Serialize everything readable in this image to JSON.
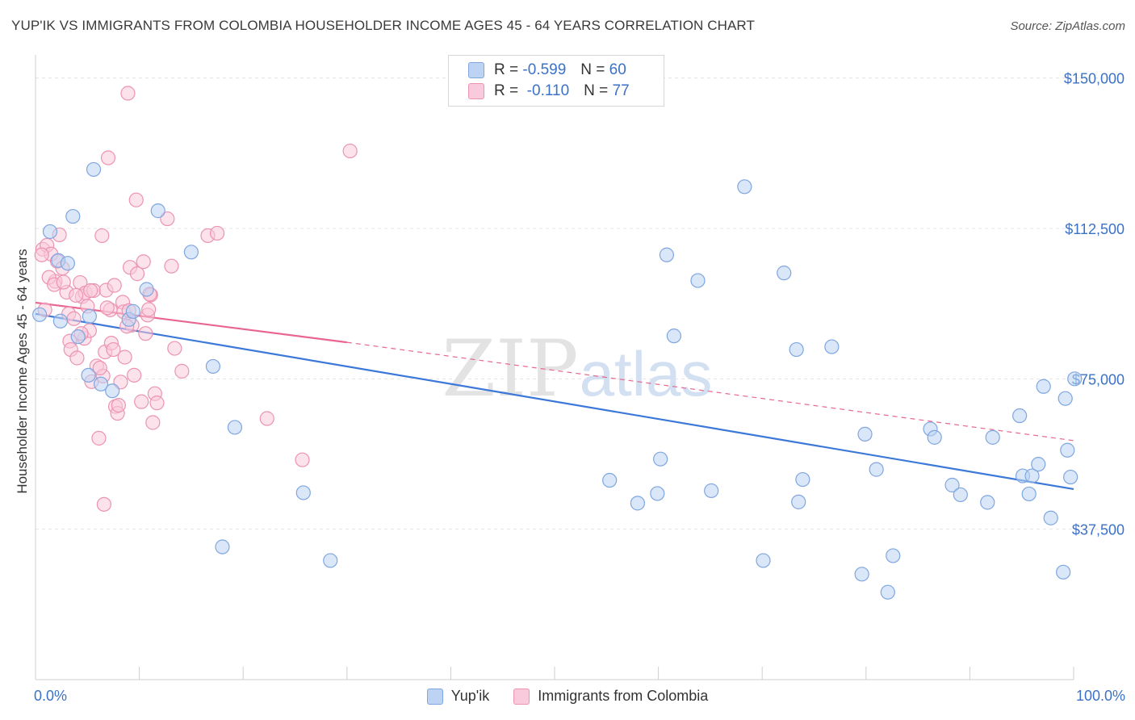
{
  "title": "YUP'IK VS IMMIGRANTS FROM COLOMBIA HOUSEHOLDER INCOME AGES 45 - 64 YEARS CORRELATION CHART",
  "source": "Source: ZipAtlas.com",
  "watermark": {
    "zip": "ZIP",
    "atlas": "atlas"
  },
  "legend_top": {
    "r_label": "R =",
    "n_label": "N =",
    "rows": [
      {
        "r": "-0.599",
        "n": "60"
      },
      {
        "r": "-0.110",
        "n": "77"
      }
    ]
  },
  "legend_bottom": [
    "Yup'ik",
    "Immigrants from Colombia"
  ],
  "colors": {
    "blue_fill": "#bcd3f3",
    "blue_stroke": "#7fa6e0",
    "blue_line": "#3b78d8",
    "pink_fill": "#f9cadb",
    "pink_stroke": "#ec93b3",
    "pink_line": "#e8668f",
    "axis_text": "#3b72c6"
  },
  "chart_data": {
    "type": "scatter",
    "ylabel": "Householder Income Ages 45 - 64 years",
    "xlim": [
      0,
      100
    ],
    "ylim": [
      0,
      153750
    ],
    "x_tick_labels": [
      "0.0%",
      "100.0%"
    ],
    "y_ticks": [
      {
        "value": 37500,
        "label": "$37,500"
      },
      {
        "value": 75000,
        "label": "$75,000"
      },
      {
        "value": 112500,
        "label": "$112,500"
      },
      {
        "value": 150000,
        "label": "$150,000"
      }
    ],
    "grid": true,
    "legend_position": "top-center",
    "series": [
      {
        "name": "Yup'ik",
        "color": "#7fa6e0",
        "trend": {
          "x": [
            0,
            100
          ],
          "y": [
            91200,
            47500
          ],
          "dashed_from": null
        },
        "points": [
          [
            0.4,
            91000
          ],
          [
            1.4,
            111700
          ],
          [
            2.2,
            104500
          ],
          [
            3.1,
            103800
          ],
          [
            3.6,
            115500
          ],
          [
            2.4,
            89400
          ],
          [
            4.1,
            85500
          ],
          [
            5.2,
            90600
          ],
          [
            5.1,
            75900
          ],
          [
            5.6,
            127200
          ],
          [
            6.3,
            73700
          ],
          [
            7.4,
            72000
          ],
          [
            9.0,
            89800
          ],
          [
            9.4,
            91800
          ],
          [
            10.7,
            97300
          ],
          [
            11.8,
            116900
          ],
          [
            15.0,
            106600
          ],
          [
            17.1,
            78100
          ],
          [
            18.0,
            33100
          ],
          [
            19.2,
            62900
          ],
          [
            25.8,
            46600
          ],
          [
            28.4,
            29700
          ],
          [
            55.3,
            49700
          ],
          [
            58.0,
            44000
          ],
          [
            59.9,
            46400
          ],
          [
            60.2,
            55000
          ],
          [
            60.8,
            105900
          ],
          [
            61.5,
            85700
          ],
          [
            63.8,
            99500
          ],
          [
            65.1,
            47100
          ],
          [
            68.3,
            122900
          ],
          [
            70.1,
            29700
          ],
          [
            72.1,
            101400
          ],
          [
            73.3,
            82300
          ],
          [
            73.5,
            44300
          ],
          [
            73.9,
            49900
          ],
          [
            76.7,
            83000
          ],
          [
            79.6,
            26300
          ],
          [
            79.9,
            61200
          ],
          [
            81.0,
            52400
          ],
          [
            82.1,
            21800
          ],
          [
            82.6,
            30900
          ],
          [
            86.2,
            62500
          ],
          [
            86.6,
            60400
          ],
          [
            88.3,
            48500
          ],
          [
            89.1,
            46100
          ],
          [
            91.7,
            44200
          ],
          [
            92.2,
            60400
          ],
          [
            94.8,
            65800
          ],
          [
            95.1,
            50800
          ],
          [
            95.7,
            46300
          ],
          [
            96.0,
            50800
          ],
          [
            96.6,
            53700
          ],
          [
            97.1,
            73100
          ],
          [
            97.8,
            40300
          ],
          [
            99.2,
            70100
          ],
          [
            99.4,
            57200
          ],
          [
            99.7,
            50500
          ],
          [
            99.0,
            26800
          ],
          [
            100.1,
            75000
          ]
        ]
      },
      {
        "name": "Immigrants from Colombia",
        "color": "#ec93b3",
        "trend": {
          "x": [
            0,
            30,
            100
          ],
          "y": [
            94000,
            84100,
            59600
          ],
          "dashed_from": 30
        },
        "points": [
          [
            0.7,
            107300
          ],
          [
            1.1,
            108300
          ],
          [
            1.5,
            106100
          ],
          [
            1.9,
            99300
          ],
          [
            2.1,
            104300
          ],
          [
            2.3,
            110900
          ],
          [
            2.6,
            102600
          ],
          [
            1.3,
            100300
          ],
          [
            0.6,
            105900
          ],
          [
            0.9,
            92200
          ],
          [
            3.0,
            96600
          ],
          [
            3.2,
            91200
          ],
          [
            3.3,
            84400
          ],
          [
            3.4,
            82300
          ],
          [
            3.7,
            90000
          ],
          [
            4.0,
            80200
          ],
          [
            4.3,
            99000
          ],
          [
            4.5,
            95500
          ],
          [
            4.7,
            85100
          ],
          [
            4.8,
            96400
          ],
          [
            5.0,
            93100
          ],
          [
            5.2,
            87000
          ],
          [
            5.4,
            74300
          ],
          [
            5.6,
            97000
          ],
          [
            5.9,
            78200
          ],
          [
            6.1,
            60200
          ],
          [
            6.4,
            110700
          ],
          [
            6.5,
            75700
          ],
          [
            6.7,
            81700
          ],
          [
            6.8,
            97100
          ],
          [
            7.0,
            130100
          ],
          [
            7.2,
            92200
          ],
          [
            7.3,
            83900
          ],
          [
            7.5,
            82300
          ],
          [
            7.7,
            68100
          ],
          [
            7.9,
            66400
          ],
          [
            8.0,
            68400
          ],
          [
            8.2,
            74200
          ],
          [
            8.4,
            94100
          ],
          [
            8.5,
            91700
          ],
          [
            8.6,
            80400
          ],
          [
            8.9,
            146200
          ],
          [
            9.1,
            102800
          ],
          [
            9.3,
            88400
          ],
          [
            9.5,
            75900
          ],
          [
            9.7,
            119600
          ],
          [
            9.8,
            101200
          ],
          [
            10.2,
            69300
          ],
          [
            10.4,
            104200
          ],
          [
            10.6,
            86300
          ],
          [
            10.8,
            90900
          ],
          [
            10.9,
            92300
          ],
          [
            11.1,
            95900
          ],
          [
            11.3,
            64100
          ],
          [
            11.5,
            71300
          ],
          [
            11.7,
            69000
          ],
          [
            12.7,
            114900
          ],
          [
            13.1,
            103100
          ],
          [
            13.4,
            82600
          ],
          [
            14.1,
            76900
          ],
          [
            16.6,
            110700
          ],
          [
            17.5,
            111300
          ],
          [
            22.3,
            65100
          ],
          [
            25.7,
            54800
          ],
          [
            30.3,
            131800
          ],
          [
            4.4,
            86300
          ],
          [
            6.9,
            92700
          ],
          [
            7.6,
            98300
          ],
          [
            1.8,
            98500
          ],
          [
            2.7,
            99100
          ],
          [
            3.9,
            95800
          ],
          [
            5.3,
            97000
          ],
          [
            6.2,
            77700
          ],
          [
            8.8,
            88100
          ],
          [
            11.0,
            96100
          ],
          [
            6.6,
            43700
          ],
          [
            9.0,
            92000
          ]
        ]
      }
    ]
  }
}
